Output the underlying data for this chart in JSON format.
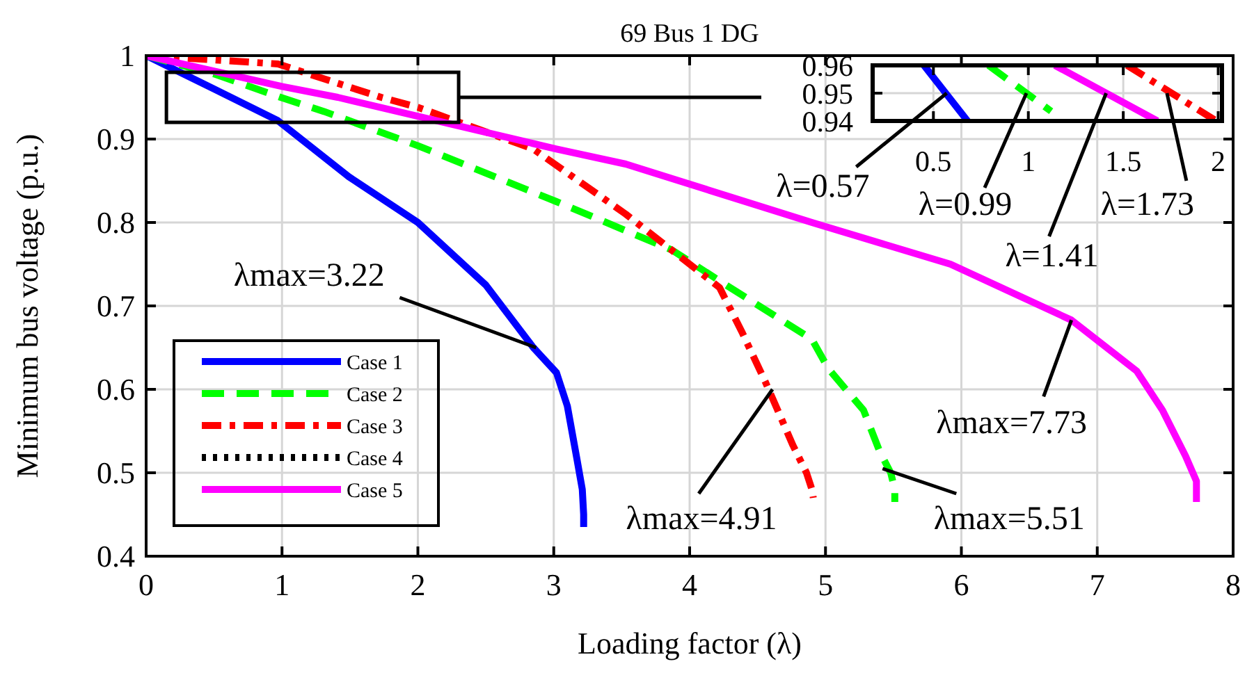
{
  "chart_data": [
    {
      "type": "line",
      "title": "69 Bus 1 DG",
      "xlabel": "Loading factor (λ)",
      "ylabel": "Minimum bus voltage (p.u.)",
      "xlim": [
        0,
        8
      ],
      "ylim": [
        0.4,
        1
      ],
      "xticks": [
        0,
        1,
        2,
        3,
        4,
        5,
        6,
        7,
        8
      ],
      "yticks": [
        0.4,
        0.5,
        0.6,
        0.7,
        0.8,
        0.9,
        1
      ],
      "grid": true,
      "legend": "bottom left",
      "series": [
        {
          "name": "Case 1",
          "color": "#0000ff",
          "line_style": "solid",
          "x": [
            0,
            0.5,
            0.97,
            1.49,
            2.0,
            2.5,
            2.85,
            3.02,
            3.1,
            3.17,
            3.21,
            3.22,
            3.22
          ],
          "values": [
            1,
            0.96,
            0.922,
            0.855,
            0.8,
            0.725,
            0.65,
            0.62,
            0.58,
            0.517,
            0.48,
            0.45,
            0.435
          ]
        },
        {
          "name": "Case 2",
          "color": "#00ff00",
          "line_style": "dashed",
          "x": [
            0,
            0.5,
            0.99,
            1.31,
            2.0,
            3.02,
            3.87,
            4.22,
            4.9,
            5.02,
            5.28,
            5.4,
            5.48,
            5.51,
            5.51
          ],
          "values": [
            1,
            0.978,
            0.95,
            0.933,
            0.892,
            0.825,
            0.767,
            0.73,
            0.66,
            0.625,
            0.575,
            0.525,
            0.5,
            0.48,
            0.465
          ]
        },
        {
          "name": "Case 3",
          "color": "#ff0000",
          "line_style": "dashdot",
          "x": [
            0,
            0.97,
            1.73,
            2.0,
            2.85,
            3.53,
            4.22,
            4.39,
            4.56,
            4.76,
            4.86,
            4.9,
            4.91
          ],
          "values": [
            1,
            0.99,
            0.95,
            0.938,
            0.888,
            0.81,
            0.722,
            0.667,
            0.608,
            0.533,
            0.5,
            0.48,
            0.47
          ]
        },
        {
          "name": "Case 4",
          "color": "#000000",
          "line_style": "dotted"
        },
        {
          "name": "Case 5",
          "color": "#ff00ff",
          "line_style": "solid",
          "x": [
            0,
            1,
            1.41,
            3.02,
            3.53,
            4.9,
            5.92,
            6.81,
            7.29,
            7.48,
            7.65,
            7.73,
            7.73
          ],
          "values": [
            1,
            0.963,
            0.95,
            0.888,
            0.87,
            0.8,
            0.75,
            0.683,
            0.622,
            0.575,
            0.52,
            0.49,
            0.465
          ]
        }
      ],
      "annotations": [
        {
          "text": "λmax=3.22",
          "x": 2.87,
          "y": 0.65
        },
        {
          "text": "λmax=4.91",
          "x": 4.61,
          "y": 0.6
        },
        {
          "text": "λmax=5.51",
          "x": 5.42,
          "y": 0.505
        },
        {
          "text": "λmax=7.73",
          "x": 6.81,
          "y": 0.683
        }
      ]
    },
    {
      "type": "line",
      "xlim": [
        0.18,
        2.02
      ],
      "ylim": [
        0.94,
        0.96
      ],
      "xticks": [
        0.5,
        1,
        1.5,
        2
      ],
      "yticks": [
        0.94,
        0.95,
        0.96
      ],
      "grid": true,
      "series": [
        {
          "color": "#0000ff",
          "line_style": "solid",
          "x": [
            0.45,
            0.68
          ],
          "values": [
            0.96,
            0.94
          ]
        },
        {
          "color": "#00ff00",
          "line_style": "dashed",
          "x": [
            0.79,
            1.12
          ],
          "values": [
            0.96,
            0.9435
          ]
        },
        {
          "color": "#ff0000",
          "line_style": "dashdot",
          "x": [
            1.52,
            1.99
          ],
          "values": [
            0.96,
            0.94
          ]
        },
        {
          "color": "#ff00ff",
          "line_style": "solid",
          "x": [
            1.14,
            1.68
          ],
          "values": [
            0.96,
            0.94
          ]
        }
      ],
      "annotations": [
        {
          "text": "λ=0.57",
          "x": 0.57,
          "y": 0.95
        },
        {
          "text": "λ=0.99",
          "x": 0.99,
          "y": 0.95
        },
        {
          "text": "λ=1.41",
          "x": 1.41,
          "y": 0.95
        },
        {
          "text": "λ=1.73",
          "x": 1.73,
          "y": 0.95
        }
      ]
    }
  ]
}
